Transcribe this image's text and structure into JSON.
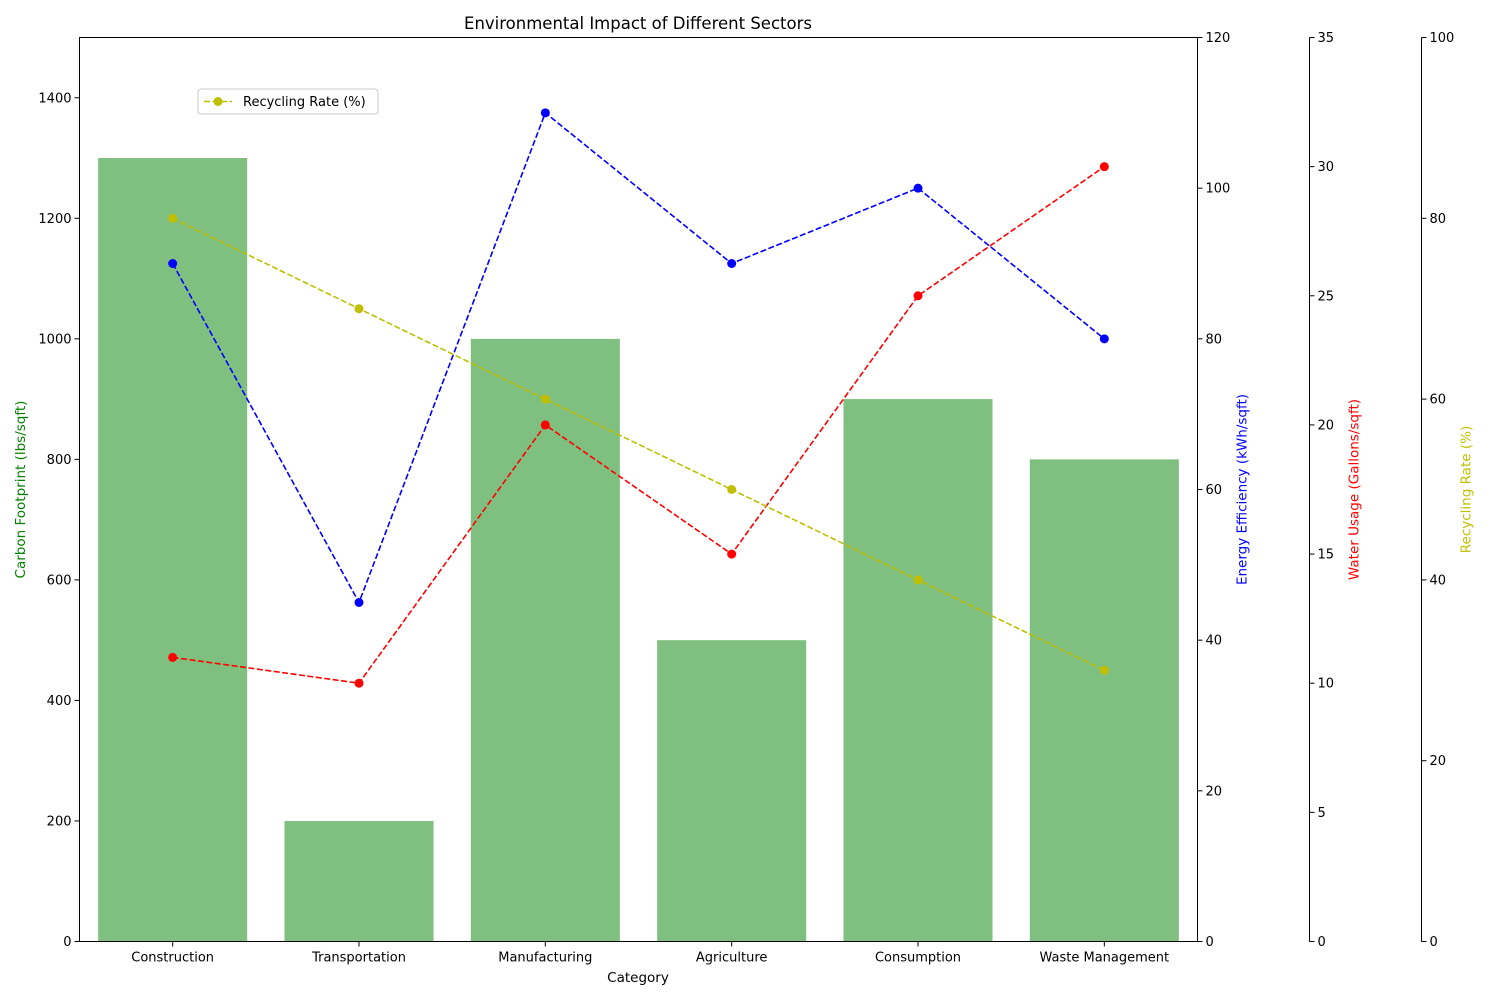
{
  "chart_data": {
    "type": "bar",
    "title": "Environmental Impact of Different Sectors",
    "xlabel": "Category",
    "categories": [
      "Construction",
      "Transportation",
      "Manufacturing",
      "Agriculture",
      "Consumption",
      "Waste Management"
    ],
    "bars": {
      "name": "Carbon Footprint (lbs/sqft)",
      "ylabel": "Carbon Footprint (lbs/sqft)",
      "values": [
        1300,
        200,
        1000,
        500,
        900,
        800
      ],
      "ylim": [
        0,
        1500
      ],
      "ticks": [
        0,
        200,
        400,
        600,
        800,
        1000,
        1200,
        1400
      ],
      "color": "#7fbf7f",
      "label_color": "#008000"
    },
    "lines": [
      {
        "name": "Energy Efficiency (kWh/sqft)",
        "ylabel": "Energy Efficiency (kWh/sqft)",
        "values": [
          90,
          45,
          110,
          90,
          100,
          80
        ],
        "ylim": [
          0,
          120
        ],
        "ticks": [
          0,
          20,
          40,
          60,
          80,
          100,
          120
        ],
        "color": "#0000ff",
        "style": "dashed",
        "marker": "circle"
      },
      {
        "name": "Water Usage (Gallons/sqft)",
        "ylabel": "Water Usage (Gallons/sqft)",
        "values": [
          11,
          10,
          20,
          15,
          25,
          30
        ],
        "ylim": [
          0,
          35
        ],
        "ticks": [
          0,
          5,
          10,
          15,
          20,
          25,
          30,
          35
        ],
        "color": "#ff0000",
        "style": "dashed",
        "marker": "circle"
      },
      {
        "name": "Recycling Rate (%)",
        "ylabel": "Recycling Rate (%)",
        "values": [
          80,
          70,
          60,
          50,
          40,
          30
        ],
        "ylim": [
          0,
          100
        ],
        "ticks": [
          0,
          20,
          40,
          60,
          80,
          100
        ],
        "color": "#bfbf00",
        "style": "dashed",
        "marker": "circle"
      }
    ],
    "legend": {
      "placement": "upper-left",
      "entries": [
        "Recycling Rate (%)"
      ]
    },
    "grid": false
  }
}
